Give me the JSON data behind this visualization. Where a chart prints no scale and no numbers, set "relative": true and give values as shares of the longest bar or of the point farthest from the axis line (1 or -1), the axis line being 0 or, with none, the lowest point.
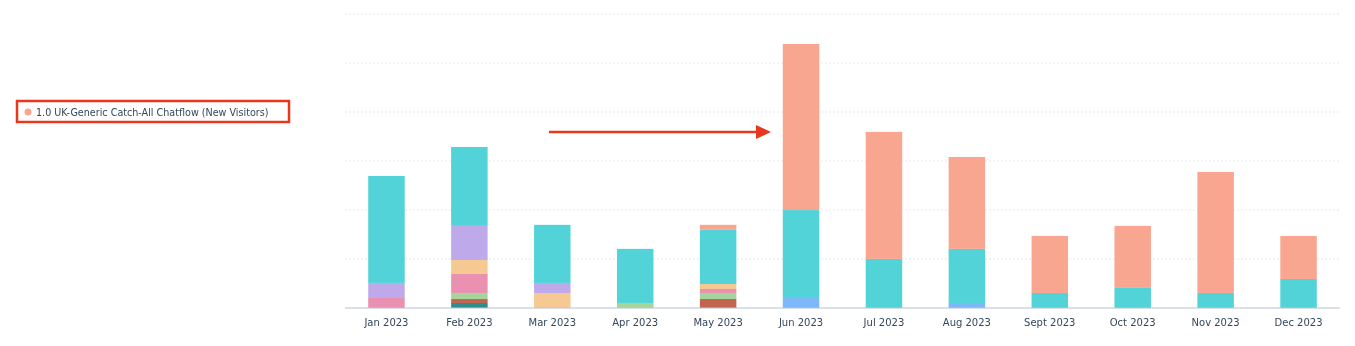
{
  "chart_data": {
    "type": "bar",
    "stacked": true,
    "relative": true,
    "grid": true,
    "legend": "left",
    "categories": [
      "Jan 2023",
      "Feb 2023",
      "Mar 2023",
      "Apr 2023",
      "May 2023",
      "Jun 2023",
      "Jul 2023",
      "Aug 2023",
      "Sept 2023",
      "Oct 2023",
      "Nov 2023",
      "Dec 2023"
    ],
    "series": [
      {
        "color": "#2e8d8f",
        "values": [
          null,
          0.019,
          null,
          null,
          null,
          null,
          null,
          null,
          null,
          null,
          null,
          null
        ]
      },
      {
        "color": "#c26450",
        "values": [
          null,
          0.015,
          null,
          null,
          0.034,
          null,
          null,
          null,
          null,
          null,
          null,
          null
        ]
      },
      {
        "color": "#a5d59b",
        "values": [
          null,
          0.023,
          null,
          0.019,
          0.023,
          null,
          null,
          null,
          null,
          null,
          null,
          null
        ]
      },
      {
        "color": "#7cb7f7",
        "values": [
          null,
          null,
          null,
          null,
          null,
          0.038,
          null,
          0.019,
          null,
          null,
          null,
          null
        ]
      },
      {
        "color": "#ea90b1",
        "values": [
          0.038,
          0.072,
          null,
          null,
          0.015,
          null,
          null,
          null,
          null,
          null,
          null,
          null
        ]
      },
      {
        "color": "#f6c992",
        "values": [
          null,
          0.053,
          0.057,
          null,
          0.019,
          null,
          null,
          null,
          null,
          null,
          null,
          null
        ]
      },
      {
        "color": "#bea9ea",
        "values": [
          0.057,
          0.129,
          0.038,
          null,
          null,
          null,
          null,
          null,
          null,
          null,
          null,
          null
        ]
      },
      {
        "color": "#52d3d8",
        "values": [
          0.405,
          0.299,
          0.22,
          0.205,
          0.205,
          0.333,
          0.186,
          0.205,
          0.057,
          0.076,
          0.057,
          0.11
        ]
      },
      {
        "name": "1.0 UK-Generic Catch-All Chatflow (New Visitors)",
        "color": "#f8a68f",
        "values": [
          null,
          null,
          null,
          null,
          0.019,
          0.629,
          0.481,
          0.348,
          0.216,
          0.235,
          0.458,
          0.163
        ]
      }
    ]
  }
}
